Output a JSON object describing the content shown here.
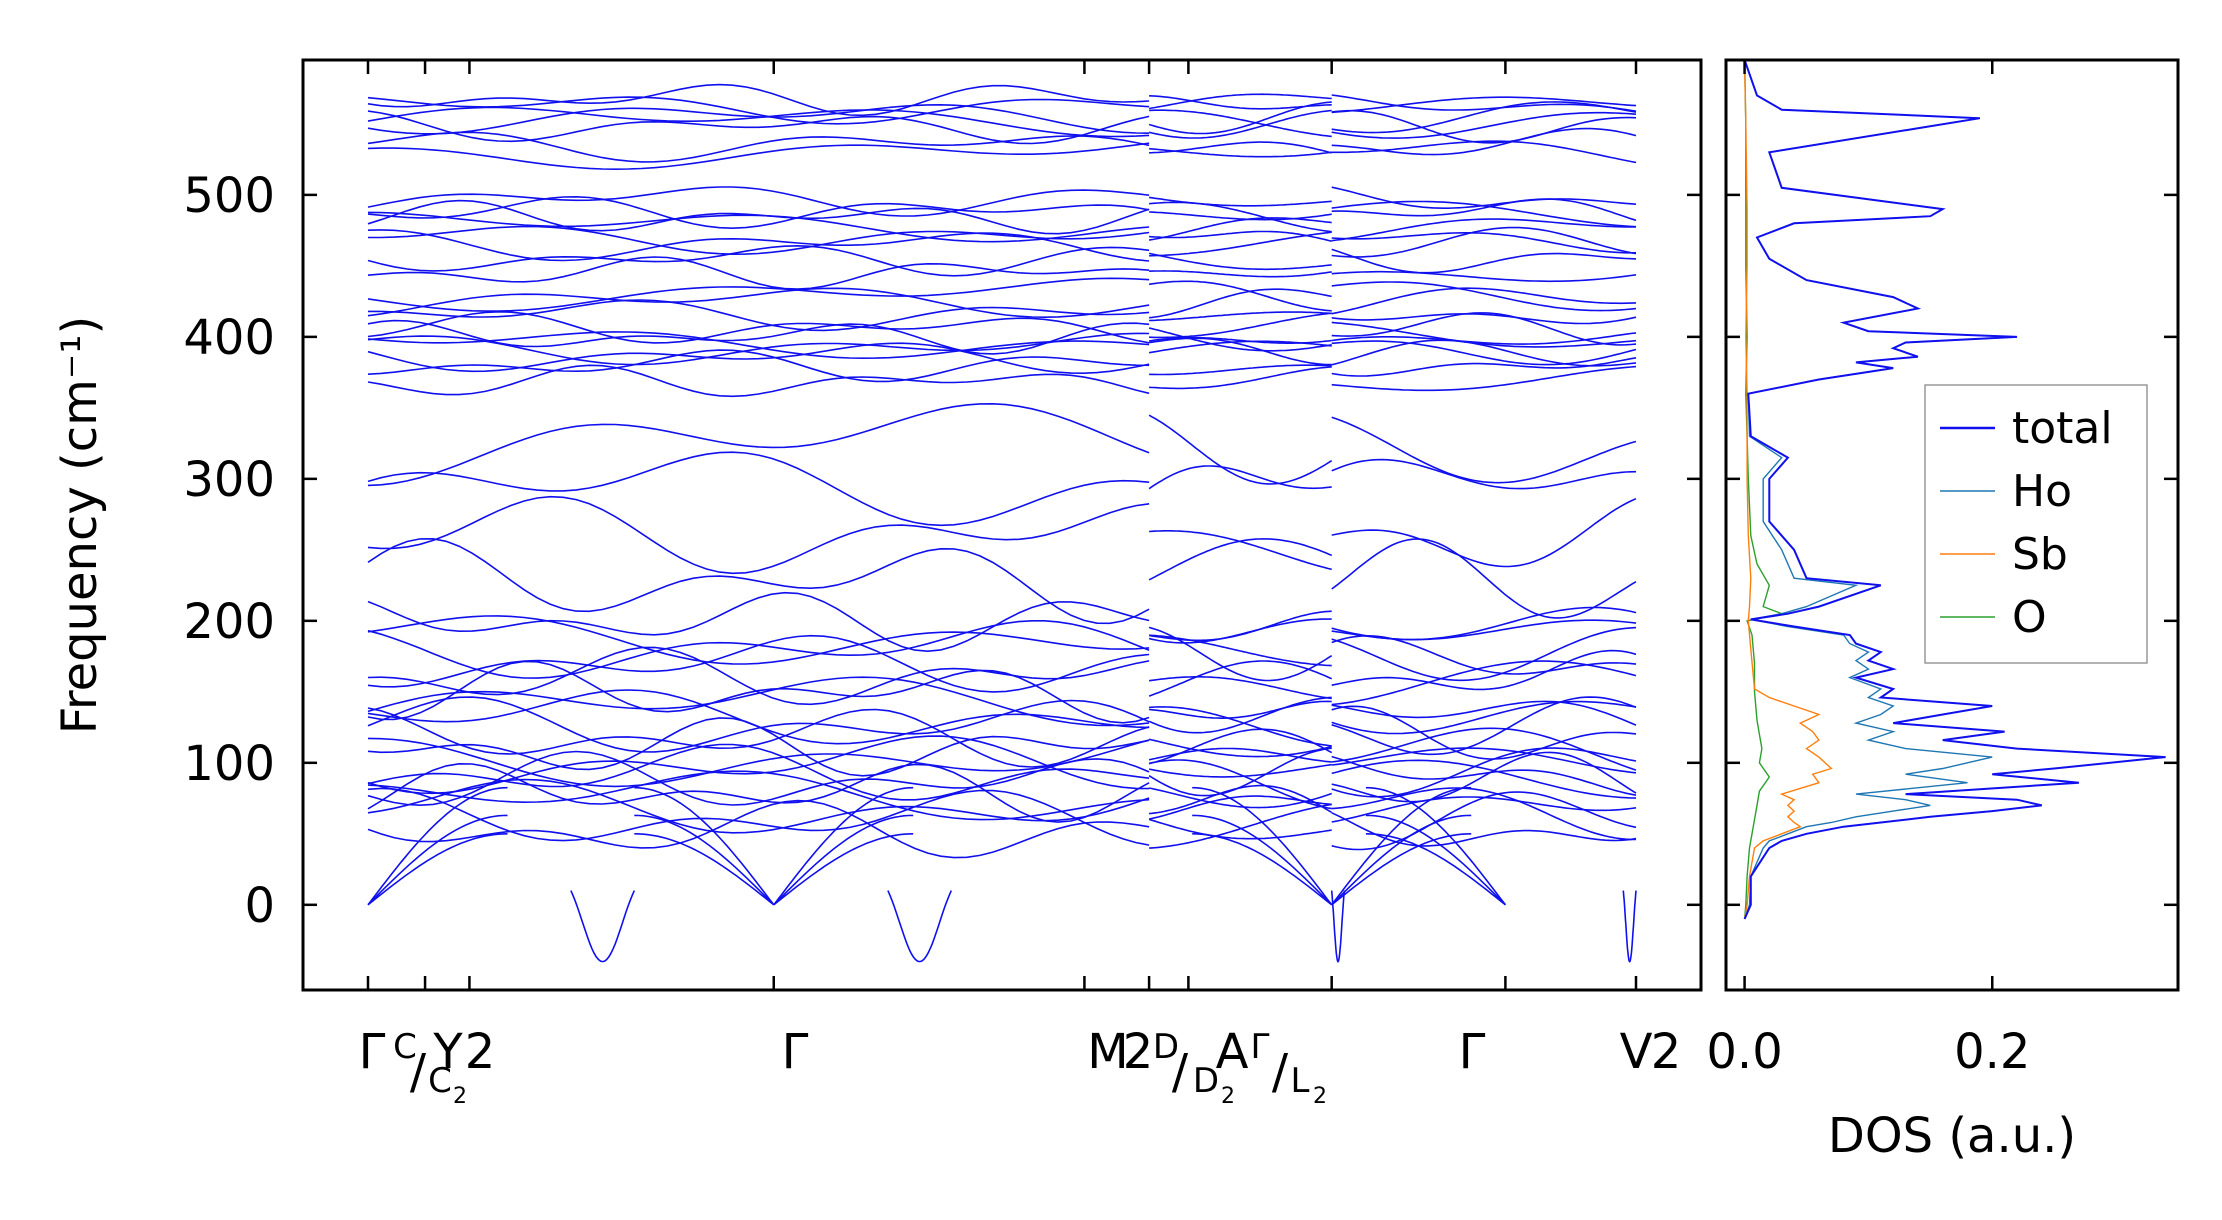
{
  "chart_data": [
    {
      "type": "line",
      "panel": "band structure",
      "ylabel": "Frequency (cm⁻¹)",
      "ylim": [
        -60,
        595
      ],
      "yticks": [
        0,
        100,
        200,
        300,
        400,
        500
      ],
      "xlim": [
        0,
        10
      ],
      "path_segments": [
        [
          0,
          6.16
        ],
        [
          6.16,
          7.6
        ],
        [
          7.6,
          10
        ]
      ],
      "q_points": [
        {
          "x": 0.0,
          "label": "Γ"
        },
        {
          "x": 0.45,
          "label": "C",
          "sub": "",
          "sup": "C",
          "slash": "/C₂"
        },
        {
          "x": 0.8,
          "label": "Y₂"
        },
        {
          "x": 3.2,
          "label": "Γ"
        },
        {
          "x": 5.65,
          "label": "M₂"
        },
        {
          "x": 6.16,
          "label": "D",
          "slash": "/D₂"
        },
        {
          "x": 6.47,
          "label": "A"
        },
        {
          "x": 7.6,
          "label": "Γ",
          "slash": "/L₂"
        },
        {
          "x": 8.97,
          "label": "Γ"
        },
        {
          "x": 10.0,
          "label": "V₂"
        }
      ],
      "tick_labels": [
        "Γ",
        "C",
        "/",
        "C",
        "2",
        "Y",
        "2",
        "Γ",
        "M",
        "2",
        "D",
        "/",
        "D",
        "2",
        "A",
        "Γ",
        "/",
        "L",
        "2",
        "Γ",
        "V",
        "2"
      ],
      "band_sets": {
        "high_optical": [
          552,
          562,
          535,
          548,
          568,
          530,
          555
        ],
        "upper_mid": [
          497,
          488,
          484,
          478,
          470,
          465,
          455,
          445
        ],
        "mid": [
          430,
          425,
          416,
          406,
          400,
          396,
          392,
          386,
          380,
          368
        ],
        "gap_modes": [
          325,
          294,
          260,
          228
        ],
        "low": [
          200,
          190,
          180,
          170,
          160,
          150,
          140,
          132,
          125,
          118,
          110,
          104,
          98,
          92,
          86,
          80,
          74,
          68,
          60,
          52
        ]
      },
      "soft_mode_minimum": -30,
      "series_color": "#1010ee"
    },
    {
      "type": "line",
      "panel": "phonon DOS",
      "xlabel": "DOS (a.u.)",
      "xlim": [
        -0.015,
        0.35
      ],
      "xticks": [
        0.0,
        0.2
      ],
      "xtick_labels": [
        "0.0",
        "0.2"
      ],
      "ylim": [
        -60,
        595
      ],
      "series": [
        {
          "name": "total",
          "color": "#1010ee",
          "points": [
            [
              0,
              -10
            ],
            [
              0.005,
              0
            ],
            [
              0.005,
              20
            ],
            [
              0.02,
              40
            ],
            [
              0.03,
              45
            ],
            [
              0.05,
              50
            ],
            [
              0.08,
              55
            ],
            [
              0.11,
              58
            ],
            [
              0.15,
              62
            ],
            [
              0.2,
              66
            ],
            [
              0.24,
              70
            ],
            [
              0.22,
              74
            ],
            [
              0.13,
              78
            ],
            [
              0.27,
              86
            ],
            [
              0.2,
              92
            ],
            [
              0.25,
              96
            ],
            [
              0.34,
              104
            ],
            [
              0.22,
              110
            ],
            [
              0.16,
              116
            ],
            [
              0.21,
              122
            ],
            [
              0.12,
              128
            ],
            [
              0.16,
              134
            ],
            [
              0.2,
              140
            ],
            [
              0.11,
              146
            ],
            [
              0.12,
              152
            ],
            [
              0.09,
              160
            ],
            [
              0.12,
              166
            ],
            [
              0.1,
              172
            ],
            [
              0.11,
              178
            ],
            [
              0.09,
              184
            ],
            [
              0.085,
              190
            ],
            [
              0.04,
              196
            ],
            [
              0.005,
              201
            ],
            [
              0.035,
              205
            ],
            [
              0.06,
              210
            ],
            [
              0.11,
              225
            ],
            [
              0.05,
              230
            ],
            [
              0.04,
              250
            ],
            [
              0.02,
              270
            ],
            [
              0.02,
              300
            ],
            [
              0.035,
              315
            ],
            [
              0.005,
              330
            ],
            [
              0.003,
              360
            ],
            [
              0.06,
              370
            ],
            [
              0.12,
              378
            ],
            [
              0.09,
              382
            ],
            [
              0.14,
              386
            ],
            [
              0.12,
              392
            ],
            [
              0.13,
              396
            ],
            [
              0.22,
              400
            ],
            [
              0.1,
              404
            ],
            [
              0.08,
              410
            ],
            [
              0.14,
              420
            ],
            [
              0.12,
              428
            ],
            [
              0.05,
              440
            ],
            [
              0.02,
              455
            ],
            [
              0.01,
              470
            ],
            [
              0.04,
              480
            ],
            [
              0.15,
              485
            ],
            [
              0.16,
              490
            ],
            [
              0.03,
              505
            ],
            [
              0.02,
              530
            ],
            [
              0.19,
              554
            ],
            [
              0.03,
              560
            ],
            [
              0.01,
              570
            ],
            [
              0.0,
              595
            ]
          ]
        },
        {
          "name": "Ho",
          "color": "#1f77b4",
          "points": [
            [
              0,
              -10
            ],
            [
              0.004,
              0
            ],
            [
              0.005,
              20
            ],
            [
              0.015,
              40
            ],
            [
              0.02,
              45
            ],
            [
              0.035,
              50
            ],
            [
              0.05,
              55
            ],
            [
              0.07,
              58
            ],
            [
              0.09,
              62
            ],
            [
              0.12,
              66
            ],
            [
              0.15,
              70
            ],
            [
              0.13,
              74
            ],
            [
              0.09,
              78
            ],
            [
              0.18,
              86
            ],
            [
              0.13,
              92
            ],
            [
              0.16,
              96
            ],
            [
              0.2,
              104
            ],
            [
              0.13,
              110
            ],
            [
              0.1,
              116
            ],
            [
              0.12,
              122
            ],
            [
              0.09,
              128
            ],
            [
              0.11,
              134
            ],
            [
              0.12,
              140
            ],
            [
              0.1,
              146
            ],
            [
              0.11,
              152
            ],
            [
              0.085,
              160
            ],
            [
              0.1,
              166
            ],
            [
              0.09,
              172
            ],
            [
              0.1,
              178
            ],
            [
              0.085,
              184
            ],
            [
              0.08,
              190
            ],
            [
              0.035,
              196
            ],
            [
              0.005,
              201
            ],
            [
              0.03,
              205
            ],
            [
              0.05,
              210
            ],
            [
              0.09,
              225
            ],
            [
              0.04,
              230
            ],
            [
              0.03,
              250
            ],
            [
              0.015,
              270
            ],
            [
              0.015,
              300
            ],
            [
              0.03,
              315
            ],
            [
              0.004,
              330
            ],
            [
              0.003,
              360
            ],
            [
              0.06,
              370
            ],
            [
              0.12,
              378
            ],
            [
              0.09,
              382
            ],
            [
              0.14,
              386
            ],
            [
              0.12,
              392
            ],
            [
              0.13,
              396
            ],
            [
              0.22,
              400
            ],
            [
              0.1,
              404
            ],
            [
              0.08,
              410
            ],
            [
              0.14,
              420
            ],
            [
              0.12,
              428
            ],
            [
              0.05,
              440
            ],
            [
              0.02,
              455
            ],
            [
              0.01,
              470
            ],
            [
              0.04,
              480
            ],
            [
              0.15,
              485
            ],
            [
              0.16,
              490
            ],
            [
              0.03,
              505
            ],
            [
              0.02,
              530
            ],
            [
              0.19,
              554
            ],
            [
              0.03,
              560
            ],
            [
              0.01,
              570
            ],
            [
              0.0,
              595
            ]
          ]
        },
        {
          "name": "Sb",
          "color": "#ff7f0e",
          "points": [
            [
              0,
              -10
            ],
            [
              0.002,
              0
            ],
            [
              0.004,
              20
            ],
            [
              0.008,
              40
            ],
            [
              0.015,
              45
            ],
            [
              0.03,
              50
            ],
            [
              0.045,
              55
            ],
            [
              0.04,
              58
            ],
            [
              0.035,
              62
            ],
            [
              0.04,
              66
            ],
            [
              0.035,
              70
            ],
            [
              0.04,
              74
            ],
            [
              0.03,
              78
            ],
            [
              0.06,
              86
            ],
            [
              0.055,
              92
            ],
            [
              0.07,
              96
            ],
            [
              0.06,
              104
            ],
            [
              0.05,
              110
            ],
            [
              0.06,
              116
            ],
            [
              0.055,
              122
            ],
            [
              0.045,
              128
            ],
            [
              0.06,
              134
            ],
            [
              0.04,
              140
            ],
            [
              0.02,
              146
            ],
            [
              0.008,
              152
            ],
            [
              0.005,
              180
            ],
            [
              0.003,
              200
            ],
            [
              0.004,
              210
            ],
            [
              0.005,
              230
            ],
            [
              0.003,
              260
            ],
            [
              0.002,
              300
            ],
            [
              0.002,
              360
            ],
            [
              0.001,
              400
            ],
            [
              0.002,
              450
            ],
            [
              0.002,
              490
            ],
            [
              0.001,
              550
            ],
            [
              0.0,
              595
            ]
          ]
        },
        {
          "name": "O",
          "color": "#2ca02c",
          "points": [
            [
              0,
              -10
            ],
            [
              0.001,
              0
            ],
            [
              0.002,
              20
            ],
            [
              0.004,
              40
            ],
            [
              0.006,
              50
            ],
            [
              0.008,
              60
            ],
            [
              0.01,
              70
            ],
            [
              0.012,
              80
            ],
            [
              0.02,
              90
            ],
            [
              0.012,
              100
            ],
            [
              0.014,
              110
            ],
            [
              0.012,
              120
            ],
            [
              0.01,
              130
            ],
            [
              0.008,
              150
            ],
            [
              0.008,
              170
            ],
            [
              0.006,
              190
            ],
            [
              0.002,
              200
            ],
            [
              0.03,
              205
            ],
            [
              0.015,
              210
            ],
            [
              0.02,
              225
            ],
            [
              0.01,
              240
            ],
            [
              0.005,
              260
            ],
            [
              0.003,
              300
            ],
            [
              0.002,
              330
            ],
            [
              0.001,
              360
            ],
            [
              0.002,
              400
            ],
            [
              0.001,
              450
            ],
            [
              0.001,
              500
            ],
            [
              0.001,
              550
            ],
            [
              0.0,
              595
            ]
          ]
        }
      ],
      "legend": {
        "placement": "right",
        "entries": [
          "total",
          "Ho",
          "Sb",
          "O"
        ]
      }
    }
  ]
}
